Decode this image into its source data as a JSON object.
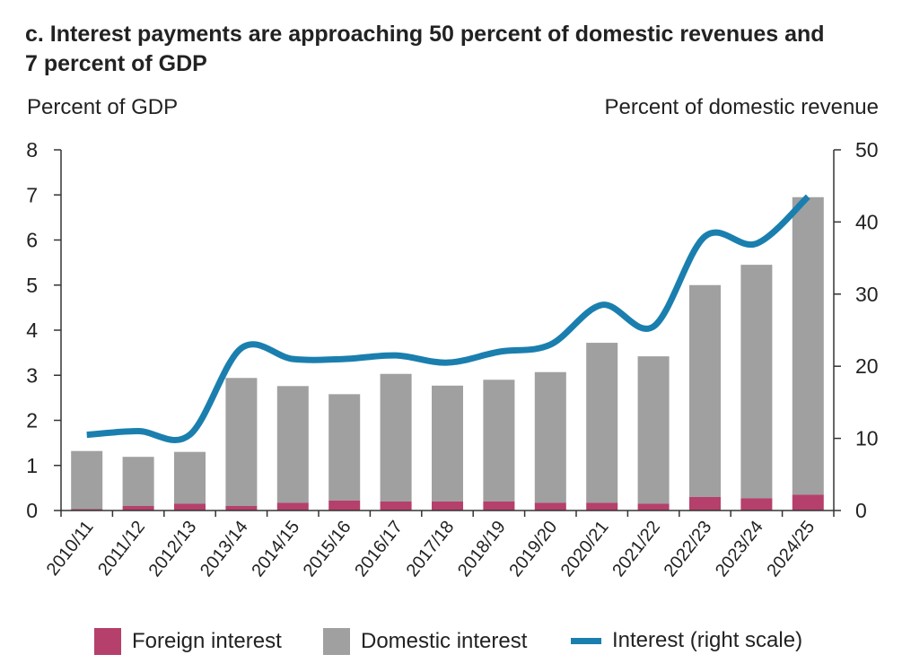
{
  "chart_data": {
    "type": "bar",
    "title": "c. Interest payments are approaching 50 percent of domestic revenues and 7 percent of GDP",
    "ylabel_left": "Percent of GDP",
    "ylabel_right": "Percent of domestic revenue",
    "ylim_left": [
      0,
      8
    ],
    "yticks_left": [
      "0",
      "1",
      "2",
      "3",
      "4",
      "5",
      "6",
      "7",
      "8"
    ],
    "ylim_right": [
      0,
      50
    ],
    "yticks_right": [
      "0",
      "10",
      "20",
      "30",
      "40",
      "50"
    ],
    "categories": [
      "2010/11",
      "2011/12",
      "2012/13",
      "2013/14",
      "2014/15",
      "2015/16",
      "2016/17",
      "2017/18",
      "2018/19",
      "2019/20",
      "2020/21",
      "2021/22",
      "2022/23",
      "2023/24",
      "2024/25"
    ],
    "series": [
      {
        "name": "Foreign interest",
        "kind": "stacked-bar",
        "axis": "left",
        "color": "#b5406b",
        "values": [
          0.03,
          0.1,
          0.15,
          0.1,
          0.17,
          0.22,
          0.2,
          0.2,
          0.2,
          0.17,
          0.17,
          0.15,
          0.3,
          0.27,
          0.35
        ]
      },
      {
        "name": "Domestic interest",
        "kind": "stacked-bar",
        "axis": "left",
        "color": "#a0a0a0",
        "values": [
          1.29,
          1.09,
          1.15,
          2.84,
          2.59,
          2.36,
          2.83,
          2.57,
          2.7,
          2.9,
          3.55,
          3.27,
          4.7,
          5.18,
          6.6
        ]
      },
      {
        "name": "Interest (right scale)",
        "kind": "line",
        "axis": "right",
        "color": "#1a7fae",
        "values": [
          10.5,
          11.0,
          10.5,
          22.5,
          21.0,
          21.0,
          21.5,
          20.5,
          22.0,
          23.0,
          28.5,
          25.5,
          38.0,
          37.0,
          43.5
        ]
      }
    ],
    "grid": false,
    "legend_position": "bottom"
  }
}
